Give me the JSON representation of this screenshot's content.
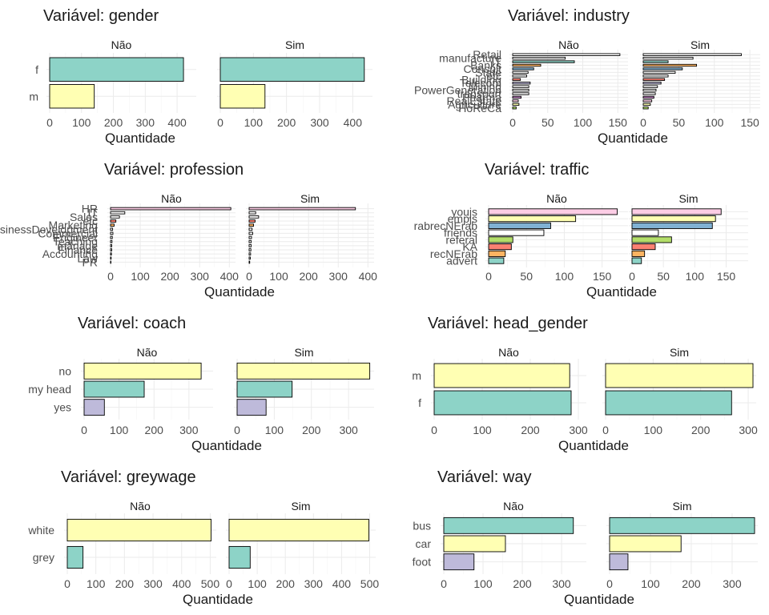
{
  "chart_data": [
    {
      "type": "bar",
      "orientation": "horizontal",
      "title": "Variável: gender",
      "xlabel": "Quantidade",
      "facets": [
        "Não",
        "Sim"
      ],
      "categories": [
        "f",
        "m"
      ],
      "colors": [
        "#8DD3C7",
        "#FFFFB3"
      ],
      "values": {
        "Não": [
          420,
          140
        ],
        "Sim": [
          435,
          135
        ]
      },
      "xlim": [
        0,
        450
      ],
      "xticks": [
        0,
        100,
        200,
        300,
        400
      ]
    },
    {
      "type": "bar",
      "orientation": "horizontal",
      "title": "Variável: industry",
      "xlabel": "Quantidade",
      "facets": [
        "Não",
        "Sim"
      ],
      "categories": [
        "Retail",
        "manufacture",
        "IT",
        "Banks",
        "Consult",
        "State",
        "etc",
        "Building",
        "Telecom",
        "Mining",
        "PowerGeneration",
        "transport",
        "Pharma",
        "RealEstate",
        "Agriculture",
        "HoReCa"
      ],
      "colors": [
        "#FFFFFF",
        "#FFFFFF",
        "#8DD3C7",
        "#FDB462",
        "#80B1D3",
        "#FFFFFF",
        "#FFFFFF",
        "#FB8072",
        "#BEBADA",
        "#FFFFFF",
        "#FFFFFF",
        "#FFFFFF",
        "#BC80BD",
        "#FCCDE5",
        "#FFFFB3",
        "#B3DE69"
      ],
      "values": {
        "Não": [
          153,
          75,
          88,
          40,
          30,
          22,
          20,
          11,
          25,
          23,
          23,
          23,
          12,
          8,
          9,
          5
        ],
        "Sim": [
          138,
          70,
          35,
          75,
          55,
          45,
          35,
          30,
          25,
          20,
          18,
          17,
          15,
          12,
          10,
          7
        ]
      },
      "xlim": [
        0,
        160
      ],
      "xticks": [
        0,
        50,
        100,
        150
      ]
    },
    {
      "type": "bar",
      "orientation": "horizontal",
      "title": "Variável: profession",
      "xlabel": "Quantidade",
      "facets": [
        "Não",
        "Sim"
      ],
      "categories": [
        "HR",
        "IT",
        "Sales",
        "etc",
        "Marketing",
        "BusinessDevelopment",
        "Commercial",
        "Engineer",
        "Teaching",
        "manage",
        "Finance",
        "Accounting",
        "Law",
        "PR"
      ],
      "colors": [
        "#FCCDE5",
        "#FFFFFF",
        "#FFFFFF",
        "#FB8072",
        "#FDB462",
        "#FFFFFF",
        "#FFFFFF",
        "#FFFFFF",
        "#FFFFFF",
        "#FFFFFF",
        "#FFFFFF",
        "#FFFFFF",
        "#FFFFFF",
        "#FFFFFF"
      ],
      "values": {
        "Não": [
          405,
          48,
          30,
          18,
          12,
          7,
          8,
          6,
          5,
          4,
          4,
          3,
          2,
          1
        ],
        "Sim": [
          358,
          22,
          32,
          20,
          15,
          10,
          12,
          8,
          7,
          7,
          6,
          5,
          4,
          2
        ]
      },
      "xlim": [
        0,
        410
      ],
      "xticks": [
        0,
        100,
        200,
        300,
        400
      ]
    },
    {
      "type": "bar",
      "orientation": "horizontal",
      "title": "Variável: traffic",
      "xlabel": "Quantidade",
      "facets": [
        "Não",
        "Sim"
      ],
      "categories": [
        "youjs",
        "empjs",
        "rabrecNErab",
        "friends",
        "referal",
        "KA",
        "recNErab",
        "advert"
      ],
      "colors": [
        "#FCCDE5",
        "#FFFFB3",
        "#80B1D3",
        "#FFFFFF",
        "#B3DE69",
        "#FB8072",
        "#FDB462",
        "#8DD3C7"
      ],
      "values": {
        "Não": [
          170,
          115,
          82,
          73,
          32,
          30,
          22,
          20
        ],
        "Sim": [
          142,
          133,
          128,
          42,
          63,
          37,
          20,
          15
        ]
      },
      "xlim": [
        0,
        180
      ],
      "xticks": [
        0,
        50,
        100,
        150
      ]
    },
    {
      "type": "bar",
      "orientation": "horizontal",
      "title": "Variável: coach",
      "xlabel": "Quantidade",
      "facets": [
        "Não",
        "Sim"
      ],
      "categories": [
        "no",
        "my head",
        "yes"
      ],
      "colors": [
        "#FFFFB3",
        "#8DD3C7",
        "#BEBADA"
      ],
      "values": {
        "Não": [
          335,
          172,
          58
        ],
        "Sim": [
          357,
          148,
          78
        ]
      },
      "xlim": [
        0,
        360
      ],
      "xticks": [
        0,
        100,
        200,
        300
      ]
    },
    {
      "type": "bar",
      "orientation": "horizontal",
      "title": "Variável: head_gender",
      "xlabel": "Quantidade",
      "facets": [
        "Não",
        "Sim"
      ],
      "categories": [
        "m",
        "f"
      ],
      "colors": [
        "#FFFFB3",
        "#8DD3C7"
      ],
      "values": {
        "Não": [
          282,
          285
        ],
        "Sim": [
          310,
          265
        ]
      },
      "xlim": [
        0,
        310
      ],
      "xticks": [
        0,
        100,
        200,
        300
      ]
    },
    {
      "type": "bar",
      "orientation": "horizontal",
      "title": "Variável: greywage",
      "xlabel": "Quantidade",
      "facets": [
        "Não",
        "Sim"
      ],
      "categories": [
        "white",
        "grey"
      ],
      "colors": [
        "#FFFFB3",
        "#8DD3C7"
      ],
      "values": {
        "Não": [
          503,
          55
        ],
        "Sim": [
          497,
          75
        ]
      },
      "xlim": [
        0,
        510
      ],
      "xticks": [
        0,
        100,
        200,
        300,
        400,
        500
      ]
    },
    {
      "type": "bar",
      "orientation": "horizontal",
      "title": "Variável: way",
      "xlabel": "Quantidade",
      "facets": [
        "Não",
        "Sim"
      ],
      "categories": [
        "bus",
        "car",
        "foot"
      ],
      "colors": [
        "#8DD3C7",
        "#FFFFB3",
        "#BEBADA"
      ],
      "values": {
        "Não": [
          330,
          157,
          77
        ],
        "Sim": [
          355,
          175,
          45
        ]
      },
      "xlim": [
        0,
        355
      ],
      "xticks": [
        0,
        100,
        200,
        300
      ]
    }
  ]
}
